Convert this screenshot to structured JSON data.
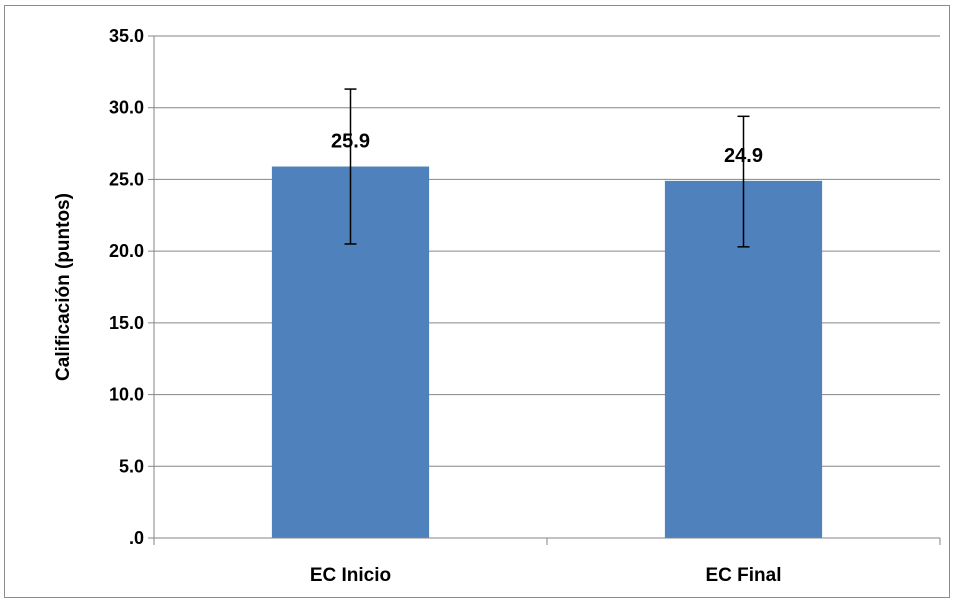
{
  "chart_data": {
    "type": "bar",
    "title": "",
    "xlabel": "",
    "ylabel": "Calificación (puntos)",
    "categories": [
      "EC Inicio",
      "EC Final"
    ],
    "values": [
      25.9,
      24.9
    ],
    "value_labels": [
      "25.9",
      "24.9"
    ],
    "error_low": [
      20.5,
      20.3
    ],
    "error_high": [
      31.3,
      29.4
    ],
    "ylim": [
      0,
      35
    ],
    "yticks": [
      0,
      5,
      10,
      15,
      20,
      25,
      30,
      35
    ],
    "ytick_labels": [
      ".0",
      "5.0",
      "10.0",
      "15.0",
      "20.0",
      "25.0",
      "30.0",
      "35.0"
    ],
    "grid": true,
    "legend": "none",
    "bar_color": "#4F81BD",
    "grid_color": "#868686"
  }
}
